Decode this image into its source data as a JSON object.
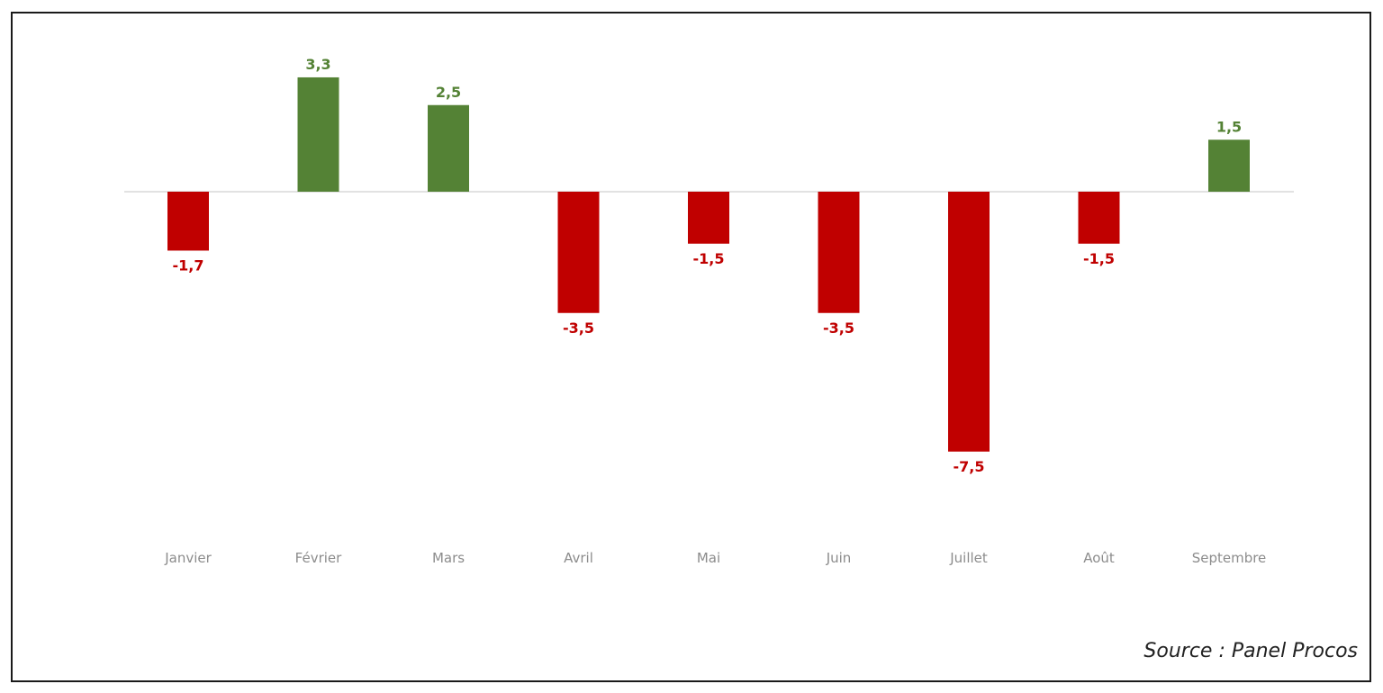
{
  "chart_data": {
    "type": "bar",
    "categories": [
      "Janvier",
      "Février",
      "Mars",
      "Avril",
      "Mai",
      "Juin",
      "Juillet",
      "Août",
      "Septembre"
    ],
    "values": [
      -1.7,
      3.3,
      2.5,
      -3.5,
      -1.5,
      -3.5,
      -7.5,
      -1.5,
      1.5
    ],
    "value_labels": [
      "-1,7",
      "3,3",
      "2,5",
      "-3,5",
      "-1,5",
      "-3,5",
      "-7,5",
      "-1,5",
      "1,5"
    ],
    "ylim": [
      -7.5,
      3.3
    ],
    "grid": false,
    "legend": "none",
    "colors": {
      "positive": "#548235",
      "negative": "#c00000",
      "zero_line": "#d9d9d9",
      "category_text": "#8c8c8c"
    }
  },
  "source": "Source : Panel Procos"
}
